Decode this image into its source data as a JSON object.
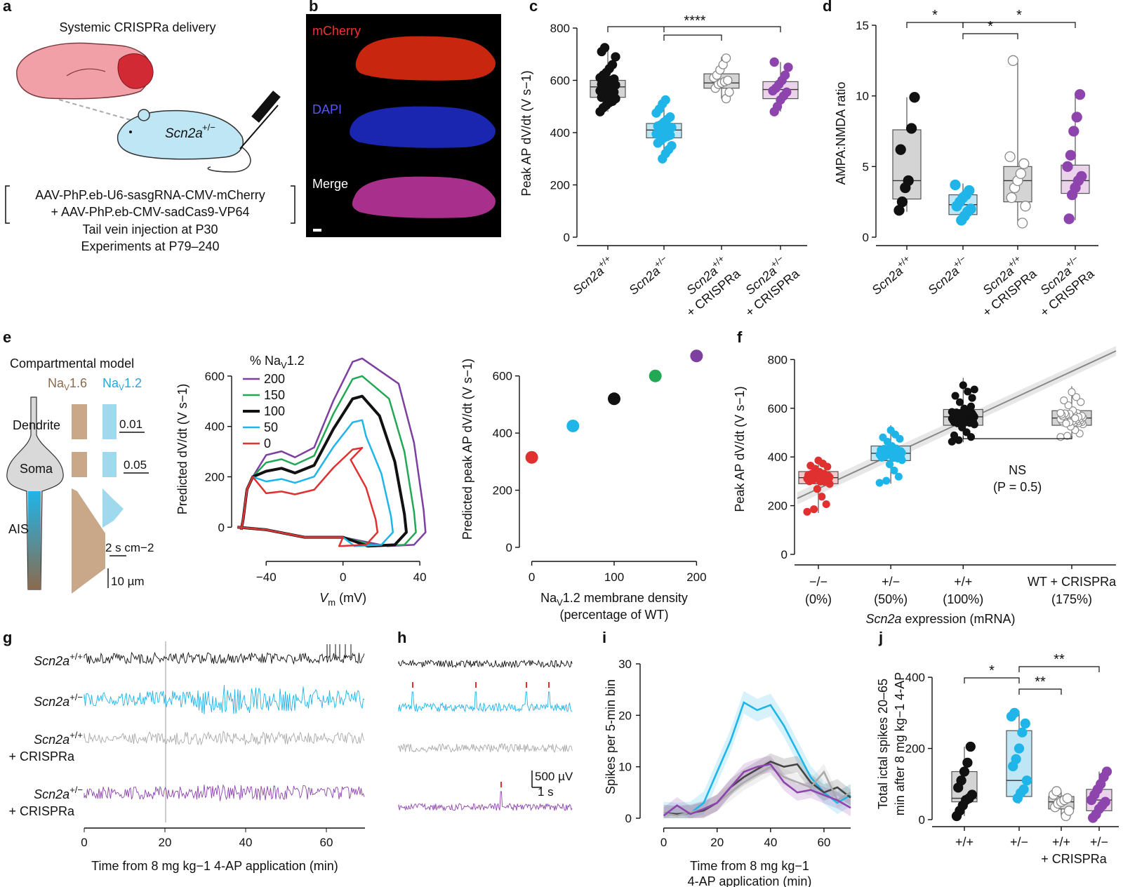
{
  "panels": {
    "a": "a",
    "b": "b",
    "c": "c",
    "d": "d",
    "e": "e",
    "f": "f",
    "g": "g",
    "h": "h",
    "i": "i",
    "j": "j"
  },
  "colors": {
    "wt": "#111111",
    "het": "#1fb5e8",
    "wt_crispr": "#999999",
    "het_crispr": "#8e44ad",
    "null": "#e03030",
    "green": "#22a854",
    "brain": "#f2a0a8",
    "mouse": "#bfe6f5",
    "nav16": "#c9a88a",
    "nav12": "#9fd9ee"
  },
  "panel_a": {
    "title": "Systemic CRISPRa delivery",
    "mouse_label": "Scn2a",
    "mouse_sup": "+/−",
    "line1": "AAV-PhP.eb-U6-sasgRNA-CMV-mCherry",
    "line2": "+ AAV-PhP.eb-CMV-sadCas9-VP64",
    "line3": "Tail vein injection at P30",
    "line4": "Experiments at P79–240"
  },
  "panel_b": {
    "ch1": "mCherry",
    "ch2": "DAPI",
    "ch3": "Merge"
  },
  "groups4": [
    {
      "name": "Scn2a",
      "sup": "+/+",
      "suffix": ""
    },
    {
      "name": "Scn2a",
      "sup": "+/−",
      "suffix": ""
    },
    {
      "name": "Scn2a",
      "sup": "+/+",
      "suffix": "+ CRISPRa"
    },
    {
      "name": "Scn2a",
      "sup": "+/−",
      "suffix": "+ CRISPRa"
    }
  ],
  "chart_data": [
    {
      "panel": "c",
      "type": "box",
      "ylabel": "Peak AP dV/dt (V s−1)",
      "ylim": [
        0,
        800
      ],
      "yticks": [
        0,
        200,
        400,
        600,
        800
      ],
      "boxes": [
        {
          "q1": 535,
          "median": 575,
          "q3": 600,
          "low": 480,
          "high": 730
        },
        {
          "q1": 380,
          "median": 410,
          "q3": 435,
          "low": 300,
          "high": 530
        },
        {
          "q1": 570,
          "median": 590,
          "q3": 625,
          "low": 530,
          "high": 690
        },
        {
          "q1": 530,
          "median": 565,
          "q3": 595,
          "low": 480,
          "high": 670
        }
      ],
      "points": [
        [
          480,
          495,
          505,
          515,
          520,
          530,
          535,
          540,
          545,
          550,
          555,
          560,
          565,
          570,
          575,
          578,
          582,
          585,
          590,
          595,
          600,
          605,
          610,
          620,
          630,
          645,
          660,
          690,
          710,
          725
        ],
        [
          300,
          320,
          335,
          350,
          360,
          370,
          380,
          385,
          390,
          395,
          400,
          405,
          410,
          415,
          420,
          425,
          430,
          440,
          450,
          460,
          475,
          490,
          510,
          525
        ],
        [
          530,
          555,
          570,
          585,
          590,
          595,
          600,
          610,
          620,
          640,
          660,
          685
        ],
        [
          480,
          500,
          525,
          540,
          555,
          560,
          570,
          585,
          600,
          620,
          650,
          670
        ]
      ],
      "significance": [
        {
          "label": "****"
        }
      ]
    },
    {
      "panel": "d",
      "type": "box",
      "ylabel": "AMPA:NMDA ratio",
      "ylim": [
        0,
        15
      ],
      "yticks": [
        0,
        5,
        10,
        15
      ],
      "boxes": [
        {
          "q1": 2.7,
          "median": 4.0,
          "q3": 7.6,
          "low": 1.8,
          "high": 9.9
        },
        {
          "q1": 1.6,
          "median": 2.3,
          "q3": 3.0,
          "low": 1.1,
          "high": 3.8
        },
        {
          "q1": 2.5,
          "median": 4.0,
          "q3": 5.0,
          "low": 1.0,
          "high": 12.5
        },
        {
          "q1": 3.1,
          "median": 4.0,
          "q3": 5.1,
          "low": 1.2,
          "high": 10.0
        }
      ],
      "points": [
        [
          1.9,
          2.5,
          3.5,
          4.0,
          7.7,
          9.9,
          6.2
        ],
        [
          1.2,
          1.5,
          1.8,
          2.0,
          2.2,
          2.5,
          2.8,
          3.0,
          3.3,
          3.7
        ],
        [
          1.0,
          2.2,
          2.8,
          3.5,
          4.0,
          4.5,
          5.2,
          5.7,
          12.5
        ],
        [
          1.3,
          3.0,
          3.5,
          4.0,
          4.3,
          5.0,
          5.8,
          7.5,
          8.5,
          10.1
        ]
      ],
      "significance": [
        {
          "label": "*"
        },
        {
          "label": "*"
        },
        {
          "label": "*"
        }
      ]
    },
    {
      "panel": "e-phase",
      "type": "line",
      "legend_title": "% Na",
      "legend_sub": "V",
      "legend_suffix": "1.2",
      "xlabel": "V",
      "xlabel_sub": "m",
      "xlabel_unit": " (mV)",
      "ylabel": "Predicted dV/dt (V s−1)",
      "xticks": [
        -40,
        0,
        40
      ],
      "yticks": [
        0,
        200,
        400,
        600
      ],
      "xlim": [
        -58,
        48
      ],
      "ylim": [
        -80,
        700
      ],
      "series": [
        {
          "name": "200",
          "color": "#7d3fa0",
          "peak": 670,
          "vmax": 43
        },
        {
          "name": "150",
          "color": "#22a854",
          "peak": 600,
          "vmax": 38
        },
        {
          "name": "100",
          "color": "#111111",
          "peak": 520,
          "vmax": 33
        },
        {
          "name": "50",
          "color": "#1fb5e8",
          "peak": 425,
          "vmax": 26
        },
        {
          "name": "0",
          "color": "#e03030",
          "peak": 315,
          "vmax": 18
        }
      ]
    },
    {
      "panel": "e-scatter",
      "type": "scatter",
      "xlabel1": "Na",
      "xlabel_sub": "V",
      "xlabel2": "1.2 membrane density",
      "xlabel3": "(percentage of WT)",
      "ylabel": "Predicted peak AP dV/dt (V s−1)",
      "xticks": [
        0,
        100,
        200
      ],
      "yticks": [
        0,
        200,
        400,
        600
      ],
      "xlim": [
        -15,
        215
      ],
      "ylim": [
        0,
        700
      ],
      "x": [
        0,
        50,
        100,
        150,
        200
      ],
      "y": [
        315,
        425,
        520,
        600,
        670
      ],
      "colors": [
        "#e03030",
        "#1fb5e8",
        "#111111",
        "#22a854",
        "#7d3fa0"
      ]
    },
    {
      "panel": "f",
      "type": "box",
      "ylabel": "Peak AP dV/dt (V s−1)",
      "ylim": [
        0,
        850
      ],
      "yticks": [
        0,
        200,
        400,
        600,
        800
      ],
      "categories": [
        "−/−",
        "+/−",
        "+/+",
        "WT + CRISPRa"
      ],
      "categories2": [
        "(0%)",
        "(50%)",
        "(100%)",
        "(175%)"
      ],
      "x": [
        0,
        50,
        100,
        175
      ],
      "boxes": [
        {
          "q1": 290,
          "median": 315,
          "q3": 340,
          "low": 170,
          "high": 400
        },
        {
          "q1": 385,
          "median": 415,
          "q3": 445,
          "low": 290,
          "high": 530
        },
        {
          "q1": 530,
          "median": 565,
          "q3": 595,
          "low": 460,
          "high": 725
        },
        {
          "q1": 530,
          "median": 560,
          "q3": 590,
          "low": 480,
          "high": 690
        }
      ],
      "fit": {
        "y_at_0": 270,
        "y_at_200": 820
      },
      "xlabel_italic": "Scn2a",
      "xlabel_rest": " expression (mRNA)",
      "annotation": "NS",
      "annotation2": "(P = 0.5)"
    },
    {
      "panel": "i",
      "type": "line",
      "ylabel": "Spikes per 5-min bin",
      "xlabel1": "Time from 8 mg kg−1",
      "xlabel2": "4-AP application (min)",
      "xticks": [
        0,
        20,
        40,
        60
      ],
      "yticks": [
        0,
        10,
        20,
        30
      ],
      "xlim": [
        -2,
        70
      ],
      "ylim": [
        0,
        30
      ],
      "x": [
        0,
        5,
        10,
        15,
        20,
        25,
        30,
        35,
        40,
        45,
        50,
        55,
        60,
        65,
        70
      ],
      "series": [
        {
          "color": "#1fb5e8",
          "values": [
            1,
            0.8,
            1,
            3,
            9,
            15,
            22.5,
            21,
            22,
            18,
            13,
            8,
            5,
            3,
            4.5
          ]
        },
        {
          "color": "#444444",
          "values": [
            1,
            0.8,
            1,
            1.5,
            3,
            6,
            8,
            9.5,
            11,
            10,
            10.5,
            7,
            5,
            6,
            4
          ]
        },
        {
          "color": "#aaaaaa",
          "values": [
            1,
            0.5,
            1.2,
            1.8,
            3,
            5,
            7,
            8.5,
            10,
            8,
            7,
            6,
            9,
            3.5,
            5
          ]
        },
        {
          "color": "#8e44ad",
          "values": [
            0.5,
            2.5,
            0.8,
            1.8,
            3,
            6,
            9,
            10,
            10.5,
            7,
            5,
            5.5,
            4.5,
            3.5,
            2
          ]
        }
      ]
    },
    {
      "panel": "j",
      "type": "box",
      "ylabel1": "Total ictal spikes 20–65",
      "ylabel2": "min after 8 mg kg−1 4-AP",
      "ylim": [
        0,
        420
      ],
      "yticks": [
        0,
        200,
        400
      ],
      "categories": [
        "+/+",
        "+/−",
        "+/+",
        "+/−"
      ],
      "suffix": "+ CRISPRa",
      "boxes": [
        {
          "q1": 50,
          "median": 60,
          "q3": 135,
          "low": 10,
          "high": 205
        },
        {
          "q1": 65,
          "median": 110,
          "q3": 250,
          "low": 45,
          "high": 305
        },
        {
          "q1": 30,
          "median": 50,
          "q3": 65,
          "low": 10,
          "high": 80
        },
        {
          "q1": 25,
          "median": 55,
          "q3": 85,
          "low": 5,
          "high": 135
        }
      ],
      "points": [
        [
          10,
          25,
          40,
          55,
          60,
          70,
          90,
          110,
          135,
          160,
          205
        ],
        [
          60,
          75,
          85,
          110,
          150,
          170,
          200,
          245,
          270,
          290,
          300
        ],
        [
          10,
          25,
          35,
          45,
          50,
          55,
          60,
          70,
          80
        ],
        [
          5,
          15,
          30,
          40,
          50,
          55,
          70,
          85,
          100,
          120,
          135
        ]
      ],
      "significance": [
        {
          "label": "*"
        },
        {
          "label": "**"
        },
        {
          "label": "**"
        }
      ]
    }
  ],
  "panel_e_model": {
    "title": "Compartmental model",
    "nav16": "Na",
    "nav16_sub": "V",
    "nav16_rest": "1.6",
    "nav12": "Na",
    "nav12_sub": "V",
    "nav12_rest": "1.2",
    "dendrite": "Dendrite",
    "soma": "Soma",
    "ais": "AIS",
    "val1": "0.01",
    "val2": "0.05",
    "scale1": "2 s cm−2",
    "scale2": "10 µm"
  },
  "panel_g": {
    "labels": [
      {
        "name": "Scn2a",
        "sup": "+/+",
        "suffix": ""
      },
      {
        "name": "Scn2a",
        "sup": "+/−",
        "suffix": ""
      },
      {
        "name": "Scn2a",
        "sup": "+/+",
        "suffix": "+ CRISPRa"
      },
      {
        "name": "Scn2a",
        "sup": "+/−",
        "suffix": "+ CRISPRa"
      }
    ],
    "xticks": [
      "0",
      "20",
      "40",
      "60"
    ],
    "xlabel": "Time from 8 mg kg−1 4-AP application (min)"
  },
  "panel_h": {
    "scale_v": "500 µV",
    "scale_t": "1 s"
  }
}
